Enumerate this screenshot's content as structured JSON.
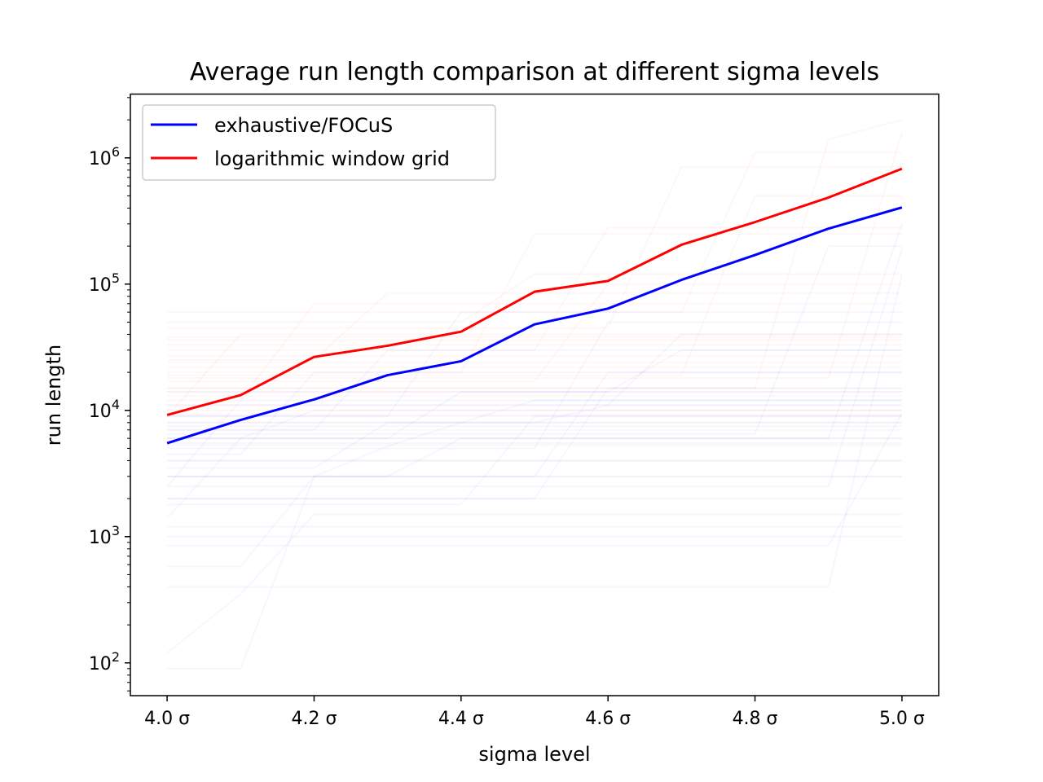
{
  "chart_data": {
    "type": "line",
    "title": "Average run length comparison at different sigma levels",
    "xlabel": "sigma level",
    "ylabel": "run length",
    "x": [
      4.0,
      4.1,
      4.2,
      4.3,
      4.4,
      4.5,
      4.6,
      4.7,
      4.8,
      4.9,
      5.0
    ],
    "x_ticks": [
      {
        "value": 4.0,
        "label": "4.0 σ"
      },
      {
        "value": 4.2,
        "label": "4.2 σ"
      },
      {
        "value": 4.4,
        "label": "4.4 σ"
      },
      {
        "value": 4.6,
        "label": "4.6 σ"
      },
      {
        "value": 4.8,
        "label": "4.8 σ"
      },
      {
        "value": 5.0,
        "label": "5.0 σ"
      }
    ],
    "y_scale": "log",
    "y_ticks": [
      {
        "value": 100,
        "base": "10",
        "exp": "2"
      },
      {
        "value": 1000,
        "base": "10",
        "exp": "3"
      },
      {
        "value": 10000,
        "base": "10",
        "exp": "4"
      },
      {
        "value": 100000,
        "base": "10",
        "exp": "5"
      },
      {
        "value": 1000000,
        "base": "10",
        "exp": "6"
      }
    ],
    "xlim": [
      3.95,
      5.05
    ],
    "ylim": [
      55,
      3200000
    ],
    "grid": false,
    "legend": "upper-left",
    "series": [
      {
        "name": "exhaustive/FOCuS",
        "color": "#0000ff",
        "values": [
          5500,
          8400,
          12200,
          19000,
          24500,
          48000,
          64000,
          108000,
          170000,
          275000,
          405000
        ]
      },
      {
        "name": "logarithmic window grid",
        "color": "#ff0000",
        "values": [
          9200,
          13200,
          26500,
          32500,
          42000,
          87000,
          106000,
          205000,
          310000,
          485000,
          820000
        ]
      }
    ],
    "background_runs": {
      "blue": [
        [
          5500,
          5500,
          5500,
          5500,
          5500,
          5500,
          5500,
          5500,
          5500,
          5500,
          5500
        ],
        [
          120,
          350,
          1500,
          1500,
          1500,
          1500,
          1500,
          1500,
          1500,
          1500,
          1500
        ],
        [
          90,
          90,
          3000,
          5200,
          8000,
          8000,
          11000,
          11000,
          11000,
          11000,
          11000
        ],
        [
          2500,
          2500,
          2500,
          2500,
          2500,
          2500,
          2500,
          2500,
          2500,
          2500,
          190000
        ],
        [
          1400,
          6000,
          6000,
          6000,
          14000,
          14000,
          14000,
          30000,
          30000,
          30000,
          30000
        ],
        [
          4000,
          4000,
          4000,
          4000,
          4000,
          4000,
          4000,
          4000,
          4000,
          4000,
          4000
        ],
        [
          3000,
          3000,
          3000,
          3000,
          3000,
          3000,
          20000,
          20000,
          20000,
          20000,
          20000
        ],
        [
          6000,
          6000,
          10000,
          10000,
          10000,
          10000,
          10000,
          10000,
          10000,
          10000,
          10000
        ],
        [
          580,
          580,
          3000,
          3000,
          6000,
          6000,
          6000,
          6000,
          6000,
          6000,
          6000
        ],
        [
          1000,
          1000,
          1000,
          1000,
          1000,
          1000,
          1000,
          1000,
          1000,
          1000,
          1000
        ],
        [
          7000,
          7000,
          7000,
          30000,
          30000,
          30000,
          30000,
          30000,
          30000,
          30000,
          30000
        ],
        [
          2000,
          2000,
          2000,
          2000,
          2000,
          2000,
          2000,
          2000,
          2000,
          2000,
          2000
        ],
        [
          8000,
          8000,
          8000,
          8000,
          8000,
          12000,
          12000,
          12000,
          12000,
          12000,
          12000
        ],
        [
          400,
          400,
          400,
          400,
          400,
          400,
          400,
          400,
          400,
          400,
          120000
        ],
        [
          5000,
          5000,
          5000,
          5000,
          5000,
          5000,
          50000,
          50000,
          50000,
          50000,
          50000
        ],
        [
          3500,
          3500,
          3500,
          8000,
          8000,
          8000,
          8000,
          8000,
          8000,
          8000,
          8000
        ],
        [
          850,
          850,
          850,
          850,
          850,
          850,
          850,
          850,
          850,
          850,
          9500
        ],
        [
          4500,
          4500,
          20000,
          20000,
          20000,
          20000,
          20000,
          20000,
          20000,
          20000,
          20000
        ],
        [
          9000,
          9000,
          9000,
          9000,
          9000,
          9000,
          9000,
          9000,
          9000,
          9000,
          9000
        ],
        [
          2000,
          2000,
          2000,
          2000,
          2000,
          2000,
          15000,
          15000,
          15000,
          15000,
          15000
        ],
        [
          11000,
          11000,
          11000,
          11000,
          11000,
          11000,
          11000,
          40000,
          40000,
          40000,
          40000
        ],
        [
          6500,
          6500,
          6500,
          6500,
          6500,
          6500,
          6500,
          6500,
          6500,
          200000,
          200000
        ],
        [
          3000,
          3000,
          3000,
          3000,
          3000,
          3000,
          3000,
          3000,
          3000,
          3000,
          3000
        ],
        [
          1800,
          1800,
          1800,
          1800,
          1800,
          9000,
          9000,
          9000,
          9000,
          9000,
          9000
        ],
        [
          2500,
          12000,
          12000,
          12000,
          12000,
          12000,
          12000,
          12000,
          12000,
          12000,
          12000
        ],
        [
          14000,
          14000,
          14000,
          14000,
          14000,
          14000,
          14000,
          14000,
          14000,
          14000,
          14000
        ],
        [
          6000,
          6000,
          6000,
          6000,
          6000,
          6000,
          6000,
          6000,
          6000,
          6000,
          300000
        ],
        [
          9000,
          9000,
          9000,
          9000,
          60000,
          60000,
          60000,
          60000,
          60000,
          60000,
          60000
        ],
        [
          1200,
          1200,
          1200,
          1200,
          1200,
          1200,
          1200,
          1200,
          1200,
          1200,
          1200
        ],
        [
          7500,
          7500,
          7500,
          7500,
          7500,
          7500,
          7500,
          7500,
          7500,
          7500,
          7500
        ]
      ],
      "red": [
        [
          9200,
          9200,
          9200,
          9200,
          9200,
          9200,
          9200,
          9200,
          9200,
          9200,
          9200
        ],
        [
          22000,
          22000,
          22000,
          22000,
          22000,
          22000,
          22000,
          22000,
          22000,
          22000,
          22000
        ],
        [
          38000,
          38000,
          38000,
          38000,
          38000,
          38000,
          38000,
          38000,
          38000,
          38000,
          38000
        ],
        [
          15000,
          15000,
          15000,
          15000,
          15000,
          15000,
          15000,
          15000,
          15000,
          15000,
          15000
        ],
        [
          5300,
          5300,
          5300,
          5300,
          5300,
          5300,
          5300,
          5300,
          5300,
          5300,
          5300
        ],
        [
          9000,
          40000,
          40000,
          40000,
          40000,
          40000,
          40000,
          40000,
          40000,
          40000,
          40000
        ],
        [
          12000,
          12000,
          70000,
          70000,
          70000,
          70000,
          70000,
          70000,
          70000,
          70000,
          70000
        ],
        [
          25000,
          25000,
          25000,
          85000,
          85000,
          85000,
          85000,
          85000,
          85000,
          85000,
          85000
        ],
        [
          20000,
          20000,
          20000,
          20000,
          20000,
          250000,
          250000,
          250000,
          250000,
          250000,
          250000
        ],
        [
          30000,
          30000,
          30000,
          30000,
          30000,
          30000,
          280000,
          280000,
          280000,
          280000,
          280000
        ],
        [
          45000,
          45000,
          45000,
          45000,
          45000,
          45000,
          45000,
          850000,
          850000,
          850000,
          850000
        ],
        [
          60000,
          60000,
          60000,
          60000,
          60000,
          60000,
          60000,
          60000,
          1100000,
          1100000,
          1100000
        ],
        [
          15000,
          15000,
          15000,
          15000,
          15000,
          15000,
          15000,
          15000,
          15000,
          1400000,
          2000000
        ],
        [
          11000,
          11000,
          11000,
          11000,
          11000,
          11000,
          11000,
          11000,
          11000,
          11000,
          11000
        ],
        [
          6000,
          6000,
          6000,
          6000,
          6000,
          6000,
          6000,
          6000,
          6000,
          6000,
          6000
        ],
        [
          3000,
          3000,
          3000,
          3000,
          3000,
          3000,
          3000,
          3000,
          3000,
          3000,
          3000
        ],
        [
          18000,
          18000,
          18000,
          18000,
          18000,
          18000,
          18000,
          18000,
          18000,
          18000,
          1600000
        ],
        [
          27000,
          27000,
          27000,
          27000,
          27000,
          27000,
          27000,
          27000,
          27000,
          27000,
          27000
        ],
        [
          8000,
          8000,
          8000,
          8000,
          8000,
          8000,
          8000,
          8000,
          8000,
          8000,
          8000
        ],
        [
          13000,
          13000,
          13000,
          13000,
          13000,
          13000,
          13000,
          13000,
          13000,
          13000,
          13000
        ],
        [
          33000,
          33000,
          33000,
          33000,
          33000,
          33000,
          33000,
          33000,
          33000,
          33000,
          33000
        ],
        [
          17000,
          17000,
          17000,
          17000,
          17000,
          17000,
          100000,
          100000,
          100000,
          100000,
          100000
        ],
        [
          7000,
          7000,
          7000,
          7000,
          7000,
          7000,
          7000,
          7000,
          7000,
          7000,
          7000
        ],
        [
          50000,
          50000,
          50000,
          50000,
          50000,
          120000,
          120000,
          120000,
          120000,
          120000,
          120000
        ],
        [
          24000,
          24000,
          24000,
          24000,
          24000,
          24000,
          24000,
          24000,
          24000,
          24000,
          24000
        ],
        [
          4000,
          4000,
          4000,
          4000,
          4000,
          4000,
          4000,
          4000,
          4000,
          4000,
          4000
        ],
        [
          19000,
          19000,
          19000,
          19000,
          19000,
          19000,
          19000,
          19000,
          500000,
          500000,
          500000
        ],
        [
          10000,
          10000,
          10000,
          10000,
          10000,
          10000,
          10000,
          10000,
          10000,
          10000,
          10000
        ],
        [
          36000,
          36000,
          36000,
          36000,
          36000,
          36000,
          36000,
          36000,
          36000,
          36000,
          36000
        ],
        [
          14000,
          14000,
          14000,
          14000,
          14000,
          14000,
          14000,
          14000,
          14000,
          14000,
          14000
        ]
      ]
    }
  }
}
